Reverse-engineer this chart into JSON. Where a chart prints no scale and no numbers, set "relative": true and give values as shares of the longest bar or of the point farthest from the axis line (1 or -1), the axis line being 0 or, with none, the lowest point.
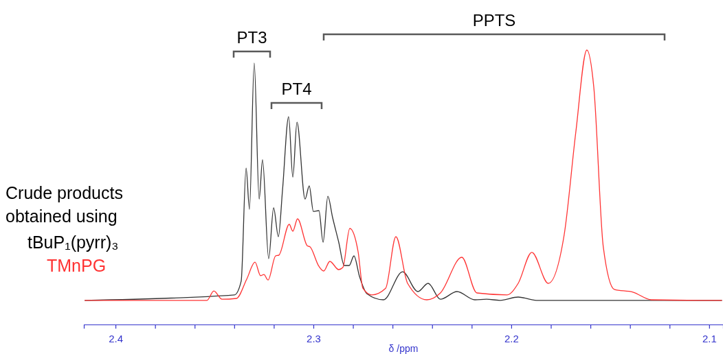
{
  "chart_data": {
    "type": "line",
    "relative": true,
    "xlabel": "δ /ppm",
    "legend_title": "Crude products obtained using",
    "legend": "left",
    "xlim": [
      2.416,
      2.093
    ],
    "xticks": [
      2.4,
      {
        "value": 2.38,
        "label": null
      },
      {
        "value": 2.36,
        "label": null
      },
      {
        "value": 2.34,
        "label": null
      },
      {
        "value": 2.32,
        "label": null
      },
      2.3,
      {
        "value": 2.28,
        "label": null
      },
      {
        "value": 2.26,
        "label": null
      },
      {
        "value": 2.24,
        "label": null
      },
      {
        "value": 2.22,
        "label": null
      },
      2.2,
      {
        "value": 2.18,
        "label": null
      },
      {
        "value": 2.16,
        "label": null
      },
      {
        "value": 2.14,
        "label": null
      },
      {
        "value": 2.12,
        "label": null
      },
      2.1
    ],
    "annotations": [
      "PT3",
      "PT4",
      "PPTS"
    ],
    "series": [
      {
        "name": "tBuP₁(pyrr)₃",
        "color": "#333333",
        "x": [
          2.4156,
          2.3399,
          2.3365,
          2.334,
          2.3323,
          2.3299,
          2.3274,
          2.3257,
          2.3226,
          2.3201,
          2.3177,
          2.3156,
          2.3125,
          2.3104,
          2.3083,
          2.3042,
          2.3021,
          2.3,
          2.2972,
          2.2951,
          2.2927,
          2.2903,
          2.2872,
          2.2844,
          2.2819,
          2.2795,
          2.2767,
          2.2729,
          2.2646,
          2.2549,
          2.2472,
          2.242,
          2.2358,
          2.2274,
          2.2184,
          2.2125,
          2.2056,
          2.1965,
          2.1872,
          2.1674,
          2.1049,
          2.0935
        ],
        "values": [
          0.088,
          0.108,
          0.158,
          0.57,
          0.42,
          0.953,
          0.457,
          0.6,
          0.24,
          0.425,
          0.32,
          0.49,
          0.757,
          0.537,
          0.737,
          0.457,
          0.505,
          0.412,
          0.415,
          0.3,
          0.467,
          0.39,
          0.3,
          0.215,
          0.215,
          0.25,
          0.175,
          0.112,
          0.09,
          0.192,
          0.12,
          0.15,
          0.092,
          0.12,
          0.09,
          0.092,
          0.088,
          0.1,
          0.088,
          0.088,
          0.088,
          0.088
        ]
      },
      {
        "name": "TMnPG",
        "color": "#ff3333",
        "x": [
          2.4156,
          2.3538,
          2.3503,
          2.3462,
          2.3389,
          2.3337,
          2.3295,
          2.3267,
          2.325,
          2.3229,
          2.3191,
          2.3174,
          2.3122,
          2.3104,
          2.308,
          2.3031,
          2.3017,
          2.2972,
          2.2948,
          2.2917,
          2.2872,
          2.2851,
          2.2816,
          2.2774,
          2.275,
          2.2705,
          2.2635,
          2.2583,
          2.2524,
          2.2427,
          2.2358,
          2.225,
          2.2174,
          2.2021,
          2.1965,
          2.1896,
          2.1813,
          2.1733,
          2.1674,
          2.1618,
          2.1583,
          2.1535,
          2.1479,
          2.1385,
          2.1292,
          2.1049,
          2.0935
        ],
        "values": [
          0.088,
          0.088,
          0.122,
          0.092,
          0.095,
          0.165,
          0.227,
          0.178,
          0.182,
          0.162,
          0.25,
          0.253,
          0.365,
          0.34,
          0.385,
          0.287,
          0.283,
          0.212,
          0.195,
          0.23,
          0.2,
          0.208,
          0.35,
          0.265,
          0.132,
          0.108,
          0.132,
          0.32,
          0.15,
          0.09,
          0.115,
          0.245,
          0.115,
          0.108,
          0.15,
          0.263,
          0.15,
          0.325,
          0.7,
          1.0,
          0.865,
          0.283,
          0.128,
          0.118,
          0.09,
          0.088,
          0.088
        ]
      }
    ]
  }
}
